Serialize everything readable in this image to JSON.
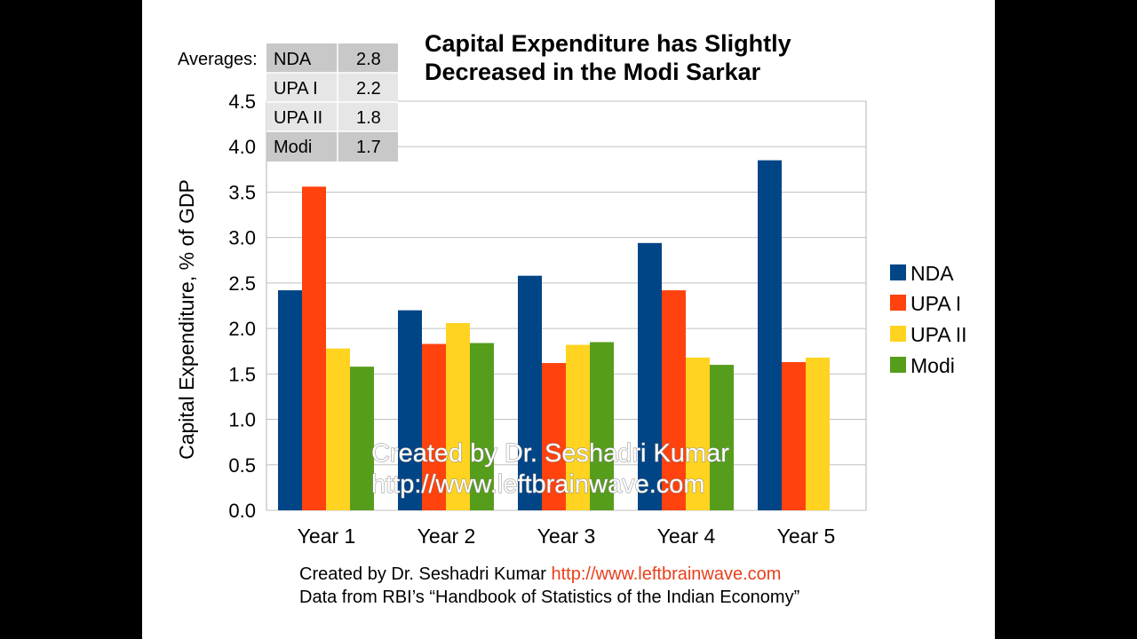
{
  "title_lines": [
    "Capital Expenditure has Slightly",
    "Decreased in the Modi Sarkar"
  ],
  "averages": {
    "label": "Averages:",
    "rows": [
      {
        "name": "NDA",
        "value": "2.8"
      },
      {
        "name": "UPA I",
        "value": "2.2"
      },
      {
        "name": "UPA II",
        "value": "1.8"
      },
      {
        "name": "Modi",
        "value": "1.7"
      }
    ]
  },
  "watermark": [
    "Created by Dr. Seshadri Kumar",
    "http://www.leftbrainwave.com"
  ],
  "footer": {
    "line1_text": "Created by Dr. Seshadri Kumar",
    "line1_link": "http://www.leftbrainwave.com",
    "line2": "Data from RBI’s “Handbook of Statistics of the Indian Economy”"
  },
  "colors": {
    "NDA": "#004586",
    "UPA I": "#ff420e",
    "UPA II": "#ffd320",
    "Modi": "#579d1c",
    "grid": "#c0c0c0",
    "table_dark": "#c8c8c8",
    "table_light": "#e6e6e6",
    "link": "#e8401c"
  },
  "chart_data": {
    "type": "bar",
    "title": "Capital Expenditure has Slightly Decreased in the Modi Sarkar",
    "xlabel": "",
    "ylabel": "Capital Expenditure, % of GDP",
    "ylim": [
      0,
      4.5
    ],
    "yticks": [
      "0.0",
      "0.5",
      "1.0",
      "1.5",
      "2.0",
      "2.5",
      "3.0",
      "3.5",
      "4.0",
      "4.5"
    ],
    "categories": [
      "Year 1",
      "Year 2",
      "Year 3",
      "Year 4",
      "Year 5"
    ],
    "series": [
      {
        "name": "NDA",
        "values": [
          2.42,
          2.2,
          2.58,
          2.94,
          3.85
        ]
      },
      {
        "name": "UPA I",
        "values": [
          3.56,
          1.83,
          1.62,
          2.42,
          1.63
        ]
      },
      {
        "name": "UPA II",
        "values": [
          1.78,
          2.06,
          1.82,
          1.68,
          1.68
        ]
      },
      {
        "name": "Modi",
        "values": [
          1.58,
          1.84,
          1.85,
          1.6,
          null
        ]
      }
    ],
    "grid": true,
    "legend": "right"
  }
}
